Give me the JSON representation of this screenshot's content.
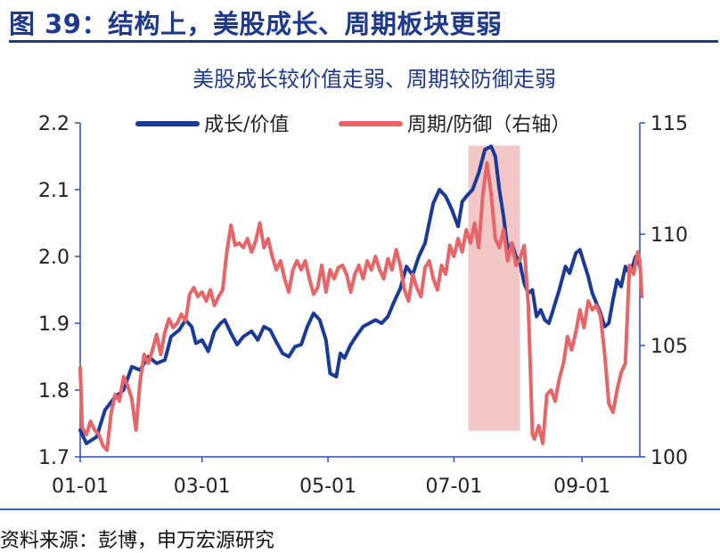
{
  "figure_title": "图 39：结构上，美股成长、周期板块更弱",
  "source": "资料来源：彭博，申万宏源研究",
  "colors": {
    "growth": "#1a3a96",
    "cyclical": "#e56568",
    "shade": "#f2c7c8",
    "axis": "#2b4fb3",
    "title_blue": "#1f3a8a"
  },
  "chart_data": {
    "type": "line",
    "title": "美股成长较价值走弱、周期较防御走弱",
    "xlabel": "",
    "ylabel": "",
    "legend_position": "top",
    "grid": false,
    "x_ticks": [
      "01-01",
      "03-01",
      "05-01",
      "07-01",
      "09-01"
    ],
    "x_tick_index": [
      0,
      59,
      120,
      181,
      243
    ],
    "x_range": [
      0,
      271
    ],
    "y_left": {
      "ticks": [
        "1.7",
        "1.8",
        "1.9",
        "2.0",
        "2.1",
        "2.2"
      ],
      "range": [
        1.7,
        2.2
      ]
    },
    "y_right": {
      "ticks": [
        "100",
        "105",
        "110",
        "115"
      ],
      "range": [
        100,
        115
      ]
    },
    "shaded_region": {
      "x_range": [
        188,
        213
      ],
      "y_range": [
        1.739,
        2.166
      ]
    },
    "series": [
      {
        "name": "成长/价值",
        "axis": "left",
        "color": "#1a3a96",
        "points": [
          [
            0,
            1.74
          ],
          [
            3,
            1.72
          ],
          [
            8,
            1.73
          ],
          [
            12,
            1.77
          ],
          [
            17,
            1.79
          ],
          [
            21,
            1.8
          ],
          [
            25,
            1.835
          ],
          [
            29,
            1.83
          ],
          [
            33,
            1.85
          ],
          [
            37,
            1.84
          ],
          [
            41,
            1.845
          ],
          [
            44,
            1.88
          ],
          [
            48,
            1.89
          ],
          [
            51,
            1.905
          ],
          [
            54,
            1.895
          ],
          [
            56,
            1.87
          ],
          [
            59,
            1.875
          ],
          [
            62,
            1.858
          ],
          [
            65,
            1.888
          ],
          [
            68,
            1.9
          ],
          [
            70,
            1.905
          ],
          [
            73,
            1.885
          ],
          [
            76,
            1.868
          ],
          [
            79,
            1.88
          ],
          [
            83,
            1.888
          ],
          [
            86,
            1.875
          ],
          [
            89,
            1.895
          ],
          [
            92,
            1.89
          ],
          [
            95,
            1.872
          ],
          [
            98,
            1.855
          ],
          [
            101,
            1.85
          ],
          [
            104,
            1.865
          ],
          [
            107,
            1.868
          ],
          [
            110,
            1.895
          ],
          [
            113,
            1.915
          ],
          [
            116,
            1.905
          ],
          [
            119,
            1.875
          ],
          [
            121,
            1.825
          ],
          [
            124,
            1.82
          ],
          [
            126,
            1.855
          ],
          [
            128,
            1.848
          ],
          [
            131,
            1.868
          ],
          [
            134,
            1.882
          ],
          [
            137,
            1.895
          ],
          [
            140,
            1.9
          ],
          [
            143,
            1.905
          ],
          [
            146,
            1.9
          ],
          [
            149,
            1.91
          ],
          [
            152,
            1.932
          ],
          [
            155,
            1.952
          ],
          [
            158,
            1.985
          ],
          [
            161,
            1.972
          ],
          [
            164,
            2.0
          ],
          [
            167,
            2.02
          ],
          [
            169,
            2.05
          ],
          [
            171,
            2.08
          ],
          [
            174,
            2.1
          ],
          [
            177,
            2.09
          ],
          [
            180,
            2.07
          ],
          [
            183,
            2.045
          ],
          [
            185,
            2.082
          ],
          [
            187,
            2.09
          ],
          [
            190,
            2.1
          ],
          [
            193,
            2.125
          ],
          [
            196,
            2.16
          ],
          [
            199,
            2.165
          ],
          [
            201,
            2.15
          ],
          [
            203,
            2.1
          ],
          [
            205,
            2.06
          ],
          [
            207,
            2.01
          ],
          [
            209,
            2.02
          ],
          [
            211,
            2.0
          ],
          [
            213,
            1.99
          ],
          [
            215,
            1.96
          ],
          [
            217,
            1.945
          ],
          [
            219,
            1.95
          ],
          [
            221,
            1.91
          ],
          [
            223,
            1.92
          ],
          [
            225,
            1.905
          ],
          [
            227,
            1.9
          ],
          [
            229,
            1.92
          ],
          [
            232,
            1.95
          ],
          [
            235,
            1.985
          ],
          [
            237,
            1.975
          ],
          [
            240,
            2.005
          ],
          [
            242,
            2.01
          ],
          [
            244,
            1.99
          ],
          [
            246,
            1.97
          ],
          [
            248,
            1.945
          ],
          [
            250,
            1.93
          ],
          [
            252,
            1.915
          ],
          [
            254,
            1.895
          ],
          [
            256,
            1.9
          ],
          [
            258,
            1.935
          ],
          [
            260,
            1.965
          ],
          [
            262,
            1.955
          ],
          [
            264,
            1.985
          ],
          [
            266,
            1.975
          ],
          [
            268,
            1.99
          ],
          [
            269,
            2.0
          ],
          [
            270,
            1.995
          ],
          [
            271,
            1.985
          ]
        ]
      },
      {
        "name": "周期/防御（右轴）",
        "axis": "right",
        "color": "#e56568",
        "points": [
          [
            0,
            104.0
          ],
          [
            1,
            101.3
          ],
          [
            3,
            101.0
          ],
          [
            5,
            101.6
          ],
          [
            7,
            101.2
          ],
          [
            9,
            101.0
          ],
          [
            11,
            100.5
          ],
          [
            13,
            100.3
          ],
          [
            15,
            102.0
          ],
          [
            17,
            102.8
          ],
          [
            19,
            102.5
          ],
          [
            21,
            103.6
          ],
          [
            23,
            103.2
          ],
          [
            25,
            102.6
          ],
          [
            27,
            101.2
          ],
          [
            29,
            103.4
          ],
          [
            31,
            104.6
          ],
          [
            33,
            104.2
          ],
          [
            35,
            104.8
          ],
          [
            37,
            105.5
          ],
          [
            39,
            104.6
          ],
          [
            41,
            105.6
          ],
          [
            43,
            106.2
          ],
          [
            45,
            105.8
          ],
          [
            47,
            106.0
          ],
          [
            49,
            106.4
          ],
          [
            51,
            106.1
          ],
          [
            53,
            107.3
          ],
          [
            55,
            107.6
          ],
          [
            57,
            107.2
          ],
          [
            59,
            107.4
          ],
          [
            61,
            107.0
          ],
          [
            63,
            107.5
          ],
          [
            65,
            106.8
          ],
          [
            67,
            107.2
          ],
          [
            69,
            107.5
          ],
          [
            71,
            109.2
          ],
          [
            73,
            110.4
          ],
          [
            75,
            109.5
          ],
          [
            77,
            109.6
          ],
          [
            79,
            109.4
          ],
          [
            81,
            109.8
          ],
          [
            83,
            109.2
          ],
          [
            85,
            109.7
          ],
          [
            87,
            110.5
          ],
          [
            89,
            109.4
          ],
          [
            91,
            109.8
          ],
          [
            93,
            109.0
          ],
          [
            95,
            108.4
          ],
          [
            97,
            108.8
          ],
          [
            99,
            108.0
          ],
          [
            101,
            107.4
          ],
          [
            103,
            108.4
          ],
          [
            105,
            108.8
          ],
          [
            107,
            108.4
          ],
          [
            109,
            108.8
          ],
          [
            111,
            108.0
          ],
          [
            113,
            107.3
          ],
          [
            115,
            107.6
          ],
          [
            117,
            108.6
          ],
          [
            119,
            107.4
          ],
          [
            121,
            108.4
          ],
          [
            123,
            108.0
          ],
          [
            125,
            108.5
          ],
          [
            127,
            108.6
          ],
          [
            129,
            108.2
          ],
          [
            131,
            107.4
          ],
          [
            133,
            108.2
          ],
          [
            135,
            108.6
          ],
          [
            137,
            108.0
          ],
          [
            139,
            108.8
          ],
          [
            141,
            108.4
          ],
          [
            143,
            109.0
          ],
          [
            145,
            108.4
          ],
          [
            147,
            108.0
          ],
          [
            149,
            108.9
          ],
          [
            151,
            108.4
          ],
          [
            153,
            109.3
          ],
          [
            155,
            108.6
          ],
          [
            157,
            107.5
          ],
          [
            159,
            107.0
          ],
          [
            161,
            108.2
          ],
          [
            163,
            107.6
          ],
          [
            165,
            107.2
          ],
          [
            167,
            108.5
          ],
          [
            169,
            108.8
          ],
          [
            171,
            108.0
          ],
          [
            173,
            107.5
          ],
          [
            175,
            108.6
          ],
          [
            177,
            108.2
          ],
          [
            179,
            109.5
          ],
          [
            181,
            109.0
          ],
          [
            183,
            109.8
          ],
          [
            185,
            109.2
          ],
          [
            187,
            110.2
          ],
          [
            189,
            109.6
          ],
          [
            191,
            110.5
          ],
          [
            193,
            109.4
          ],
          [
            195,
            111.8
          ],
          [
            197,
            113.2
          ],
          [
            199,
            111.8
          ],
          [
            201,
            109.8
          ],
          [
            203,
            109.4
          ],
          [
            205,
            110.2
          ],
          [
            207,
            108.8
          ],
          [
            209,
            109.6
          ],
          [
            211,
            108.6
          ],
          [
            213,
            108.9
          ],
          [
            215,
            109.5
          ],
          [
            217,
            106.8
          ],
          [
            219,
            101.0
          ],
          [
            220,
            100.8
          ],
          [
            222,
            101.4
          ],
          [
            224,
            100.6
          ],
          [
            226,
            102.8
          ],
          [
            228,
            103.0
          ],
          [
            230,
            102.5
          ],
          [
            232,
            103.5
          ],
          [
            234,
            104.2
          ],
          [
            236,
            105.4
          ],
          [
            238,
            104.8
          ],
          [
            240,
            105.6
          ],
          [
            242,
            106.6
          ],
          [
            244,
            105.8
          ],
          [
            246,
            107.0
          ],
          [
            248,
            106.6
          ],
          [
            250,
            106.8
          ],
          [
            252,
            106.3
          ],
          [
            254,
            104.6
          ],
          [
            256,
            102.4
          ],
          [
            258,
            102.0
          ],
          [
            260,
            103.0
          ],
          [
            262,
            103.8
          ],
          [
            264,
            104.2
          ],
          [
            266,
            108.6
          ],
          [
            268,
            108.2
          ],
          [
            270,
            109.2
          ],
          [
            271,
            108.8
          ],
          [
            272,
            107.2
          ]
        ]
      }
    ]
  }
}
